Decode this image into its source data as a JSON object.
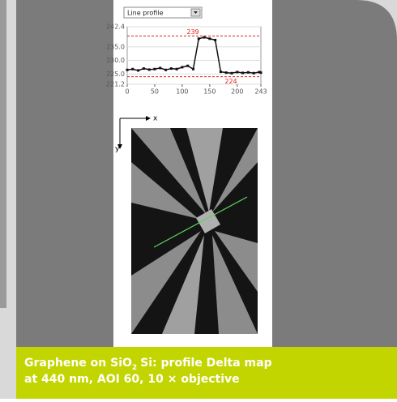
{
  "dropdown": "Line profile",
  "chart_data": {
    "type": "line",
    "x": [
      0,
      10,
      20,
      30,
      40,
      50,
      60,
      70,
      80,
      90,
      100,
      110,
      120,
      130,
      140,
      150,
      160,
      170,
      180,
      190,
      200,
      210,
      220,
      230,
      240,
      243
    ],
    "series": [
      {
        "color": "#111111",
        "values": [
          226.5,
          226.8,
          226.3,
          227,
          226.6,
          226.8,
          227.2,
          226.5,
          227,
          226.8,
          227.5,
          228,
          226.8,
          238,
          238.5,
          238,
          237.5,
          225.8,
          225.5,
          225.3,
          225.7,
          225.4,
          225.6,
          225.3,
          225.7,
          225.5
        ]
      }
    ],
    "xlim": [
      0,
      243
    ],
    "xticks": [
      0,
      50,
      100,
      150,
      200,
      243
    ],
    "ylim": [
      221.2,
      242.4
    ],
    "yticks": [
      {
        "value": 221.2,
        "label": "221.2"
      },
      {
        "value": 225,
        "label": "225.0"
      },
      {
        "value": 230,
        "label": "230.0"
      },
      {
        "value": 235,
        "label": "235.0"
      },
      {
        "value": 242.4,
        "label": "242.4"
      }
    ],
    "reference_lines": [
      239,
      224
    ],
    "reference_color": "#e2231a",
    "grid": true
  },
  "image_axes": {
    "x": "x",
    "y": "y"
  },
  "caption": {
    "line1_a": "Graphene on SiO",
    "sub": "2",
    "line1_b": "Si: profile Delta map",
    "line2": "at 440 nm, AOI 60, 10 × objective"
  }
}
